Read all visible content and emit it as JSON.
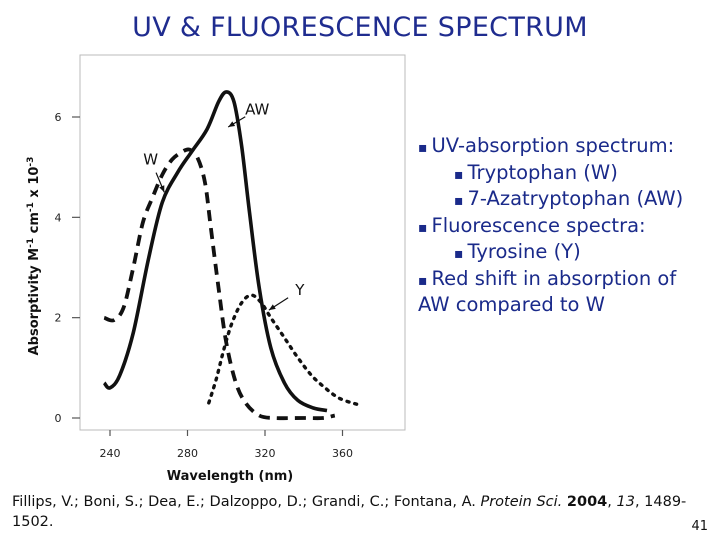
{
  "title": "UV & FLUORESCENCE SPECTRUM",
  "chart_data": {
    "type": "line",
    "title": "",
    "xlabel": "Wavelength (nm)",
    "ylabel_parts": [
      "Absorptivity M",
      "-1",
      " cm",
      "-1",
      " x 10",
      "-3"
    ],
    "xlim": [
      225,
      375
    ],
    "ylim": [
      0,
      6.6
    ],
    "x_ticks": [
      240,
      280,
      320,
      360
    ],
    "y_ticks": [
      0,
      2,
      4,
      6
    ],
    "series": [
      {
        "name": "AW",
        "style": "solid",
        "points": [
          [
            237,
            0.7
          ],
          [
            240,
            0.6
          ],
          [
            245,
            0.85
          ],
          [
            252,
            1.7
          ],
          [
            260,
            3.2
          ],
          [
            267,
            4.3
          ],
          [
            275,
            4.9
          ],
          [
            282,
            5.3
          ],
          [
            290,
            5.75
          ],
          [
            296,
            6.3
          ],
          [
            300,
            6.5
          ],
          [
            304,
            6.3
          ],
          [
            308,
            5.4
          ],
          [
            312,
            4.1
          ],
          [
            317,
            2.6
          ],
          [
            323,
            1.4
          ],
          [
            330,
            0.7
          ],
          [
            337,
            0.35
          ],
          [
            345,
            0.2
          ],
          [
            352,
            0.15
          ]
        ]
      },
      {
        "name": "W",
        "style": "dashed",
        "points": [
          [
            237,
            2.0
          ],
          [
            242,
            1.95
          ],
          [
            247,
            2.2
          ],
          [
            252,
            3.0
          ],
          [
            257,
            3.9
          ],
          [
            262,
            4.4
          ],
          [
            267,
            4.85
          ],
          [
            272,
            5.15
          ],
          [
            277,
            5.3
          ],
          [
            281,
            5.35
          ],
          [
            285,
            5.2
          ],
          [
            289,
            4.7
          ],
          [
            292,
            3.8
          ],
          [
            296,
            2.6
          ],
          [
            300,
            1.5
          ],
          [
            305,
            0.7
          ],
          [
            310,
            0.3
          ],
          [
            317,
            0.05
          ],
          [
            325,
            0.0
          ],
          [
            340,
            0.0
          ],
          [
            350,
            0.0
          ],
          [
            356,
            0.05
          ]
        ]
      },
      {
        "name": "Y",
        "style": "dotted",
        "points": [
          [
            291,
            0.3
          ],
          [
            295,
            0.8
          ],
          [
            299,
            1.4
          ],
          [
            303,
            1.9
          ],
          [
            308,
            2.3
          ],
          [
            313,
            2.45
          ],
          [
            318,
            2.3
          ],
          [
            323,
            2.0
          ],
          [
            330,
            1.6
          ],
          [
            337,
            1.2
          ],
          [
            344,
            0.85
          ],
          [
            351,
            0.6
          ],
          [
            358,
            0.4
          ],
          [
            365,
            0.3
          ],
          [
            370,
            0.25
          ]
        ]
      }
    ],
    "annotations": [
      {
        "text": "AW",
        "series": "AW",
        "at": [
          316,
          6.05
        ],
        "target": [
          301,
          5.8
        ]
      },
      {
        "text": "W",
        "series": "W",
        "at": [
          261,
          5.05
        ],
        "target": [
          268,
          4.5
        ]
      },
      {
        "text": "Y",
        "series": "Y",
        "at": [
          338,
          2.45
        ],
        "target": [
          322,
          2.15
        ]
      }
    ]
  },
  "bullets": [
    {
      "level": 1,
      "text": "UV-absorption spectrum:"
    },
    {
      "level": 2,
      "text": "Tryptophan (W)"
    },
    {
      "level": 2,
      "text": "7-Azatryptophan (AW)"
    },
    {
      "level": 1,
      "text": "Fluorescence spectra:"
    },
    {
      "level": 2,
      "text": "Tyrosine (Y)"
    },
    {
      "level": 1,
      "text": "Red shift in absorption of AW compared to W"
    }
  ],
  "citation": {
    "authors": "Fillips, V.; Boni, S.; Dea, E.; Dalzoppo, D.; Grandi, C.; Fontana, A. ",
    "journal": "Protein Sci.",
    "year": "2004",
    "volume": "13",
    "pages": ", 1489-1502."
  },
  "page_number": "41",
  "colors": {
    "title": "#1f2c8f",
    "bullets": "#1a2a8a",
    "curves": "#111111"
  }
}
